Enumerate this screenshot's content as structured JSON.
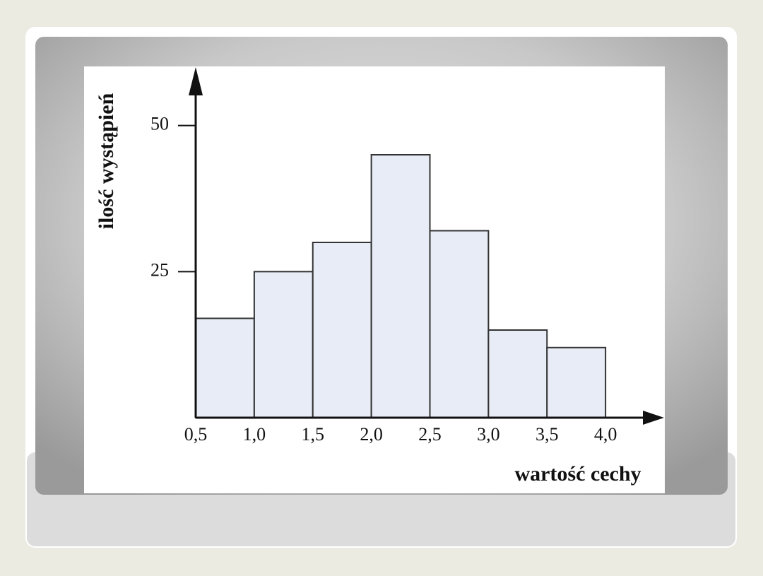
{
  "chart_data": {
    "type": "histogram",
    "xlabel": "wartość cechy",
    "ylabel": "ilość wystąpień",
    "bins": [
      0.5,
      1.0,
      1.5,
      2.0,
      2.5,
      3.0,
      3.5,
      4.0
    ],
    "values": [
      17,
      25,
      30,
      45,
      32,
      15,
      12
    ],
    "color": "#e7ecf6",
    "xlim": [
      0.5,
      4.5
    ],
    "ylim": [
      0,
      60
    ],
    "xticks": [
      {
        "value": 0.5,
        "label": "0,5"
      },
      {
        "value": 1.0,
        "label": "1,0"
      },
      {
        "value": 1.5,
        "label": "1,5"
      },
      {
        "value": 2.0,
        "label": "2,0"
      },
      {
        "value": 2.5,
        "label": "2,5"
      },
      {
        "value": 3.0,
        "label": "3,0"
      },
      {
        "value": 3.5,
        "label": "3,5"
      },
      {
        "value": 4.0,
        "label": "4,0"
      }
    ],
    "yticks": [
      25,
      50
    ]
  }
}
